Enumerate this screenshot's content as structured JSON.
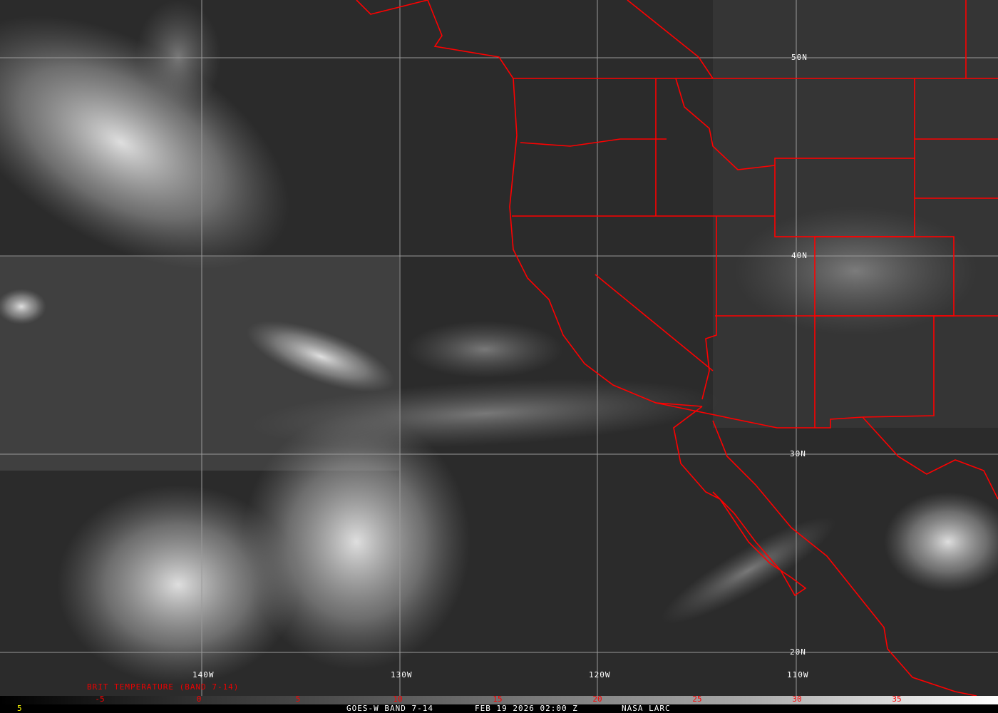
{
  "map": {
    "latitude_labels": [
      "50N",
      "40N",
      "30N",
      "20N"
    ],
    "longitude_labels": [
      "140W",
      "130W",
      "120W",
      "110W"
    ],
    "product_label": "BRIT TEMPERATURE (BAND 7-14)",
    "border_color": "#ff0000",
    "grid_color": "#9a9a9a"
  },
  "colorbar": {
    "ticks": [
      "-5",
      "0",
      "5",
      "10",
      "15",
      "20",
      "25",
      "30",
      "35"
    ],
    "tick_color": "#ff0000"
  },
  "footer": {
    "frame_number": "5",
    "satellite": "GOES-W BAND 7-14",
    "datetime": "FEB 19 2026 02:00 Z",
    "source": "NASA LARC"
  }
}
